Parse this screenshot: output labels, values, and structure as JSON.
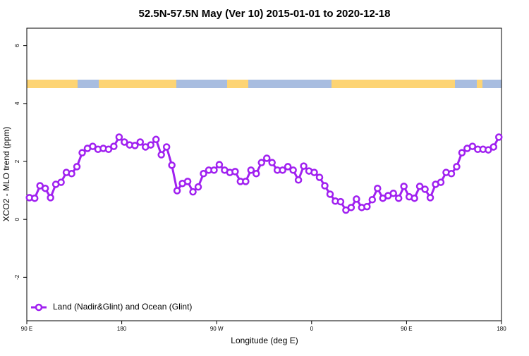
{
  "chart_data": {
    "type": "line",
    "title": "52.5N-57.5N May (Ver 10)   2015-01-01 to 2020-12-18",
    "x_label": "Longitude (deg E)",
    "y_label": "XCO2 - MLO trend (ppm)",
    "xlim": [
      90,
      540
    ],
    "xticks": [
      {
        "value": 90,
        "label": "90 E"
      },
      180,
      {
        "value": 270,
        "label": "90 W"
      },
      {
        "value": 360,
        "label": "0"
      },
      {
        "value": 450,
        "label": "90 E"
      },
      {
        "value": 540,
        "label": "180"
      }
    ],
    "ylim": [
      -3.5,
      6.6
    ],
    "yticks": [
      -2,
      0,
      2,
      4,
      6
    ],
    "grid": false,
    "legend": "bottom-left",
    "x": [
      92.5,
      97.5,
      102.5,
      107.5,
      112.5,
      117.5,
      122.5,
      127.5,
      132.5,
      137.5,
      142.5,
      147.5,
      152.5,
      157.5,
      162.5,
      167.5,
      172.5,
      177.5,
      182.5,
      187.5,
      192.5,
      197.5,
      202.5,
      207.5,
      212.5,
      217.5,
      222.5,
      227.5,
      232.5,
      237.5,
      242.5,
      247.5,
      252.5,
      257.5,
      262.5,
      267.5,
      272.5,
      277.5,
      282.5,
      287.5,
      292.5,
      297.5,
      302.5,
      307.5,
      312.5,
      317.5,
      322.5,
      327.5,
      332.5,
      337.5,
      342.5,
      347.5,
      352.5,
      357.5,
      362.5,
      367.5,
      372.5,
      377.5,
      382.5,
      387.5,
      392.5,
      397.5,
      402.5,
      407.5,
      412.5,
      417.5,
      422.5,
      427.5,
      432.5,
      437.5,
      442.5,
      447.5,
      452.5,
      457.5,
      462.5,
      467.5,
      472.5,
      477.5,
      482.5,
      487.5,
      492.5,
      497.5,
      502.5,
      507.5,
      512.5,
      517.5,
      522.5,
      527.5,
      532.5,
      537.5
    ],
    "series": [
      {
        "name": "Land (Nadir&Glint) and Ocean (Glint)",
        "color": "#a020f0",
        "values": [
          0.75,
          0.73,
          1.16,
          1.07,
          0.75,
          1.21,
          1.28,
          1.62,
          1.58,
          1.82,
          2.3,
          2.45,
          2.52,
          2.42,
          2.45,
          2.42,
          2.52,
          2.84,
          2.67,
          2.57,
          2.55,
          2.67,
          2.5,
          2.57,
          2.76,
          2.23,
          2.5,
          1.87,
          0.99,
          1.24,
          1.31,
          0.95,
          1.12,
          1.58,
          1.7,
          1.7,
          1.89,
          1.7,
          1.62,
          1.65,
          1.31,
          1.31,
          1.7,
          1.58,
          1.96,
          2.11,
          1.96,
          1.7,
          1.7,
          1.82,
          1.7,
          1.36,
          1.84,
          1.67,
          1.62,
          1.45,
          1.16,
          0.87,
          0.63,
          0.61,
          0.32,
          0.41,
          0.7,
          0.41,
          0.44,
          0.68,
          1.07,
          0.73,
          0.82,
          0.9,
          0.73,
          1.14,
          0.78,
          0.73,
          1.14,
          1.04,
          0.75,
          1.21,
          1.28,
          1.62,
          1.58,
          1.82,
          2.3,
          2.45,
          2.52,
          2.42,
          2.42,
          2.4,
          2.5,
          2.84
        ]
      }
    ]
  }
}
